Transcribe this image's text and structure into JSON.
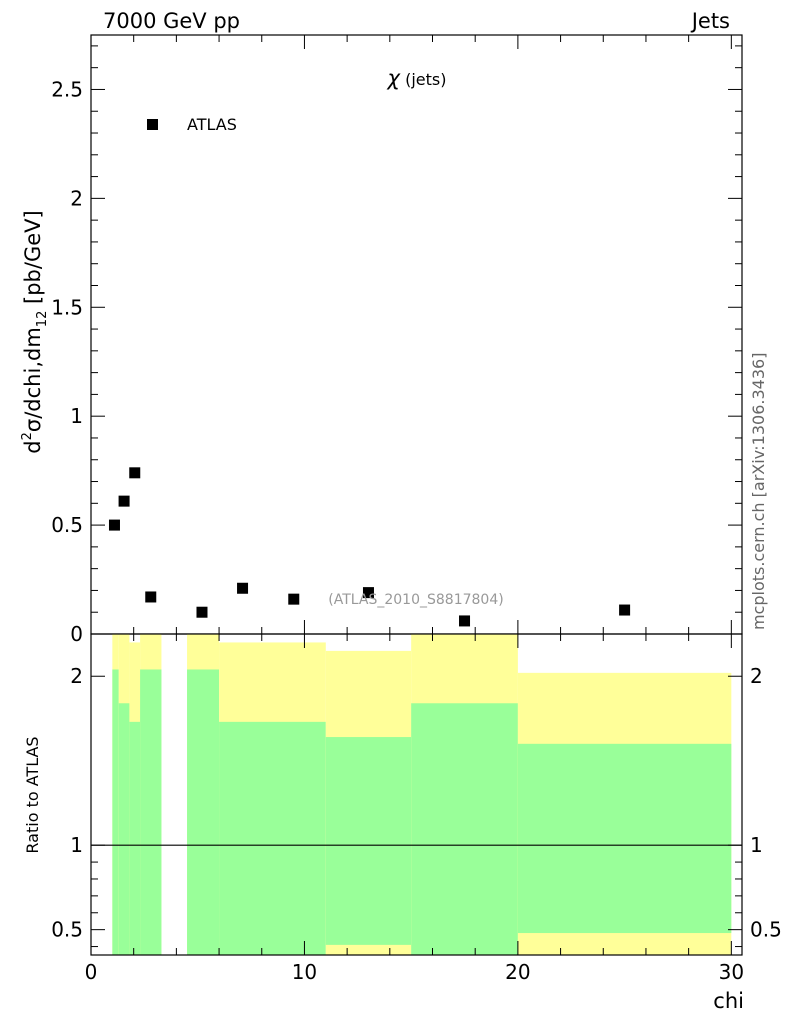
{
  "header": {
    "left": "7000 GeV pp",
    "right": "Jets"
  },
  "side_label": "mcplots.cern.ch [arXiv:1306.3436]",
  "chart_data": [
    {
      "type": "scatter",
      "title": "χ (jets)",
      "title_symbol": "χ",
      "title_rest": " (jets)",
      "ylabel_parts": {
        "d": "d",
        "sup": "2",
        "body": "σ/dchi,dm",
        "sub": "12",
        "units": " [pb/GeV]"
      },
      "annotation": "(ATLAS_2010_S8817804)",
      "xlim": [
        0,
        30.5
      ],
      "ylim": [
        0,
        2.75
      ],
      "yticks": [
        {
          "v": 0,
          "label": "0"
        },
        {
          "v": 0.5,
          "label": "0.5"
        },
        {
          "v": 1,
          "label": "1"
        },
        {
          "v": 1.5,
          "label": "1.5"
        },
        {
          "v": 2,
          "label": "2"
        },
        {
          "v": 2.5,
          "label": "2.5"
        }
      ],
      "legend": {
        "name": "ATLAS",
        "placement": "top-left"
      },
      "series": [
        {
          "name": "ATLAS",
          "x": [
            1.1,
            1.55,
            2.05,
            2.8,
            5.2,
            7.1,
            9.5,
            13,
            17.5,
            25
          ],
          "y": [
            0.5,
            0.61,
            0.74,
            0.17,
            0.1,
            0.21,
            0.16,
            0.19,
            0.06,
            0.11
          ]
        }
      ]
    },
    {
      "type": "area",
      "ylabel": "Ratio to ATLAS",
      "xlabel": "chi",
      "xlim": [
        0,
        30.5
      ],
      "ylim": [
        0.35,
        2.25
      ],
      "xticks": [
        {
          "v": 0,
          "label": "0"
        },
        {
          "v": 10,
          "label": "10"
        },
        {
          "v": 20,
          "label": "20"
        },
        {
          "v": 30,
          "label": "30"
        }
      ],
      "yticks": [
        {
          "v": 0.5,
          "label": "0.5"
        },
        {
          "v": 1,
          "label": "1"
        },
        {
          "v": 2,
          "label": "2"
        }
      ],
      "reference_line": 1,
      "colors": {
        "green": "#99ff99",
        "yellow": "#ffff99"
      },
      "bands": [
        {
          "x0": 1.0,
          "x1": 1.3,
          "green": [
            0.35,
            2.04
          ],
          "yellow": [
            0.35,
            2.25
          ]
        },
        {
          "x0": 1.3,
          "x1": 1.8,
          "green": [
            0.35,
            1.84
          ],
          "yellow": [
            0.35,
            2.25
          ]
        },
        {
          "x0": 1.8,
          "x1": 2.3,
          "green": [
            0.35,
            1.73
          ],
          "yellow": [
            0.35,
            2.2
          ]
        },
        {
          "x0": 2.3,
          "x1": 3.3,
          "green": [
            0.35,
            2.04
          ],
          "yellow": [
            0.35,
            2.25
          ]
        },
        {
          "x0": 4.5,
          "x1": 6.0,
          "green": [
            0.35,
            2.04
          ],
          "yellow": [
            0.35,
            2.25
          ]
        },
        {
          "x0": 6.0,
          "x1": 11.0,
          "green": [
            0.35,
            1.73
          ],
          "yellow": [
            0.35,
            2.2
          ]
        },
        {
          "x0": 11.0,
          "x1": 15.0,
          "green": [
            0.41,
            1.64
          ],
          "yellow": [
            0.35,
            2.15
          ]
        },
        {
          "x0": 15.0,
          "x1": 20.0,
          "green": [
            0.35,
            1.84
          ],
          "yellow": [
            0.35,
            2.25
          ]
        },
        {
          "x0": 20.0,
          "x1": 30.0,
          "green": [
            0.48,
            1.6
          ],
          "yellow": [
            0.35,
            2.02
          ]
        }
      ]
    }
  ]
}
